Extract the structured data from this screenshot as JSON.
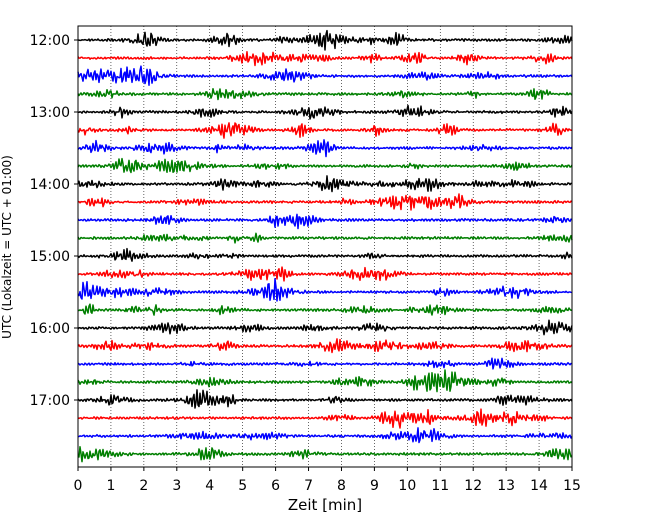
{
  "chart_data": {
    "type": "line",
    "title": "",
    "xlabel": "Zeit  [min]",
    "ylabel": "UTC (Lokalzeit = UTC + 01:00)",
    "xlim": [
      0,
      15
    ],
    "x_ticks": [
      "0",
      "1",
      "2",
      "3",
      "4",
      "5",
      "6",
      "7",
      "8",
      "9",
      "10",
      "11",
      "12",
      "13",
      "14",
      "15"
    ],
    "y_tick_labels": [
      "12:00",
      "13:00",
      "14:00",
      "15:00",
      "16:00",
      "17:00"
    ],
    "grid": "vertical dotted",
    "series_colors": [
      "#000000",
      "#ff0000",
      "#0000ff",
      "#007f00"
    ],
    "traces": [
      {
        "time": "12:00",
        "color": "#000000"
      },
      {
        "time": "12:15",
        "color": "#ff0000"
      },
      {
        "time": "12:30",
        "color": "#0000ff"
      },
      {
        "time": "12:45",
        "color": "#007f00"
      },
      {
        "time": "13:00",
        "color": "#000000"
      },
      {
        "time": "13:15",
        "color": "#ff0000"
      },
      {
        "time": "13:30",
        "color": "#0000ff"
      },
      {
        "time": "13:45",
        "color": "#007f00"
      },
      {
        "time": "14:00",
        "color": "#000000"
      },
      {
        "time": "14:15",
        "color": "#ff0000"
      },
      {
        "time": "14:30",
        "color": "#0000ff"
      },
      {
        "time": "14:45",
        "color": "#007f00"
      },
      {
        "time": "15:00",
        "color": "#000000"
      },
      {
        "time": "15:15",
        "color": "#ff0000"
      },
      {
        "time": "15:30",
        "color": "#0000ff"
      },
      {
        "time": "15:45",
        "color": "#007f00"
      },
      {
        "time": "16:00",
        "color": "#000000"
      },
      {
        "time": "16:15",
        "color": "#ff0000"
      },
      {
        "time": "16:30",
        "color": "#0000ff"
      },
      {
        "time": "16:45",
        "color": "#007f00"
      },
      {
        "time": "17:00",
        "color": "#000000"
      },
      {
        "time": "17:15",
        "color": "#ff0000"
      },
      {
        "time": "17:30",
        "color": "#0000ff"
      },
      {
        "time": "17:45",
        "color": "#007f00"
      }
    ]
  }
}
